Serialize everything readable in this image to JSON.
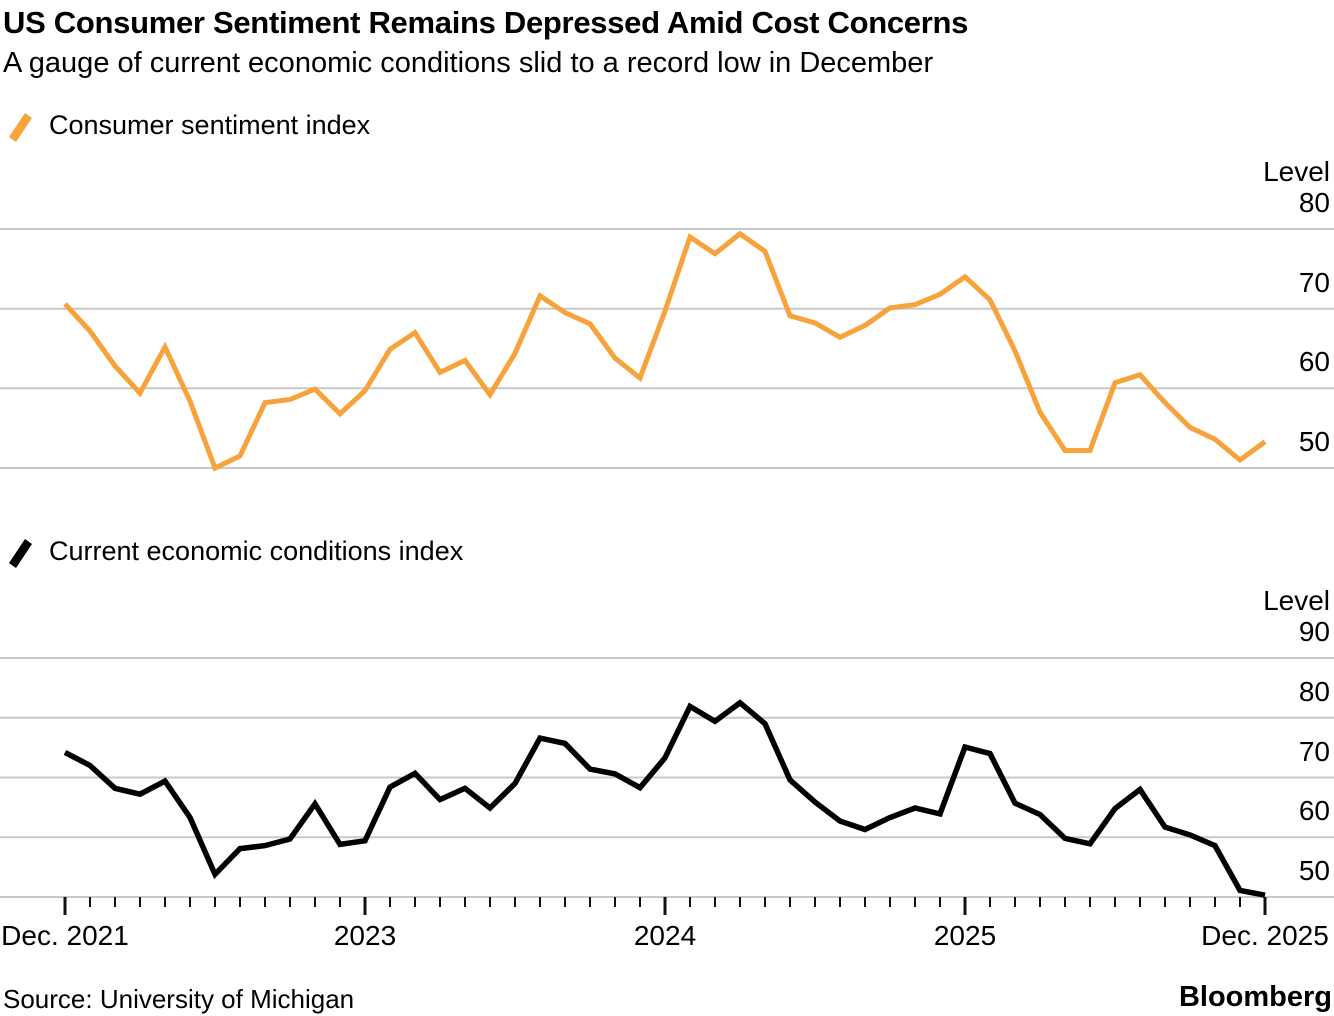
{
  "header": {
    "title": "US Consumer Sentiment Remains Depressed Amid Cost Concerns",
    "subtitle": "A gauge of current economic conditions slid to a record low in December"
  },
  "x_axis": {
    "tick_labels": [
      "Dec. 2021",
      "2023",
      "2024",
      "2025",
      "Dec. 2025"
    ]
  },
  "footer": {
    "source": "Source: University of Michigan",
    "brand": "Bloomberg"
  },
  "colors": {
    "sentiment_line": "#F7A23A",
    "conditions_line": "#000000",
    "gridline": "#C8C8C8",
    "tick": "#111111",
    "text": "#000000"
  },
  "charts": [
    {
      "legend": "Consumer sentiment index",
      "level_label": "Level",
      "y_tick_labels": [
        "80",
        "70",
        "60",
        "50"
      ],
      "color": "#F7A23A"
    },
    {
      "legend": "Current economic conditions index",
      "level_label": "Level",
      "y_tick_labels": [
        "90",
        "80",
        "70",
        "60",
        "50"
      ],
      "color": "#000000"
    }
  ],
  "chart_data": [
    {
      "type": "line",
      "title": "Consumer sentiment index",
      "ylabel": "Level",
      "y_gridlines": [
        80,
        70,
        60,
        50
      ],
      "ylim": [
        48,
        82
      ],
      "grid": true,
      "legend_position": "top-left",
      "x": [
        "2021-12",
        "2022-01",
        "2022-02",
        "2022-03",
        "2022-04",
        "2022-05",
        "2022-06",
        "2022-07",
        "2022-08",
        "2022-09",
        "2022-10",
        "2022-11",
        "2022-12",
        "2023-01",
        "2023-02",
        "2023-03",
        "2023-04",
        "2023-05",
        "2023-06",
        "2023-07",
        "2023-08",
        "2023-09",
        "2023-10",
        "2023-11",
        "2023-12",
        "2024-01",
        "2024-02",
        "2024-03",
        "2024-04",
        "2024-05",
        "2024-06",
        "2024-07",
        "2024-08",
        "2024-09",
        "2024-10",
        "2024-11",
        "2024-12",
        "2025-01",
        "2025-02",
        "2025-03",
        "2025-04",
        "2025-05",
        "2025-06",
        "2025-07",
        "2025-08",
        "2025-09",
        "2025-10",
        "2025-11",
        "2025-12"
      ],
      "values": [
        70.6,
        67.2,
        62.8,
        59.4,
        65.2,
        58.4,
        50.0,
        51.5,
        58.2,
        58.6,
        59.9,
        56.8,
        59.7,
        64.9,
        67.0,
        62.0,
        63.5,
        59.2,
        64.4,
        71.6,
        69.5,
        68.1,
        63.8,
        61.3,
        69.7,
        79.0,
        76.9,
        79.4,
        77.2,
        69.1,
        68.2,
        66.4,
        67.9,
        70.1,
        70.5,
        71.8,
        74.0,
        71.1,
        64.7,
        57.0,
        52.2,
        52.2,
        60.7,
        61.7,
        58.2,
        55.1,
        53.6,
        51.0,
        53.3
      ]
    },
    {
      "type": "line",
      "title": "Current economic conditions index",
      "ylabel": "Level",
      "y_gridlines": [
        90,
        80,
        70,
        60,
        50
      ],
      "ylim": [
        48,
        92
      ],
      "grid": true,
      "legend_position": "top-left",
      "x": [
        "2021-12",
        "2022-01",
        "2022-02",
        "2022-03",
        "2022-04",
        "2022-05",
        "2022-06",
        "2022-07",
        "2022-08",
        "2022-09",
        "2022-10",
        "2022-11",
        "2022-12",
        "2023-01",
        "2023-02",
        "2023-03",
        "2023-04",
        "2023-05",
        "2023-06",
        "2023-07",
        "2023-08",
        "2023-09",
        "2023-10",
        "2023-11",
        "2023-12",
        "2024-01",
        "2024-02",
        "2024-03",
        "2024-04",
        "2024-05",
        "2024-06",
        "2024-07",
        "2024-08",
        "2024-09",
        "2024-10",
        "2024-11",
        "2024-12",
        "2025-01",
        "2025-02",
        "2025-03",
        "2025-04",
        "2025-05",
        "2025-06",
        "2025-07",
        "2025-08",
        "2025-09",
        "2025-10",
        "2025-11",
        "2025-12"
      ],
      "values": [
        74.2,
        72.0,
        68.2,
        67.2,
        69.4,
        63.3,
        53.8,
        58.1,
        58.6,
        59.7,
        65.6,
        58.8,
        59.4,
        68.4,
        70.7,
        66.3,
        68.2,
        64.9,
        69.0,
        76.6,
        75.7,
        71.4,
        70.6,
        68.3,
        73.3,
        81.9,
        79.4,
        82.5,
        79.0,
        69.6,
        65.9,
        62.7,
        61.3,
        63.3,
        64.9,
        63.9,
        75.1,
        74.0,
        65.7,
        63.8,
        59.8,
        58.9,
        64.8,
        68.0,
        61.7,
        60.4,
        58.6,
        51.1,
        50.3
      ]
    }
  ]
}
